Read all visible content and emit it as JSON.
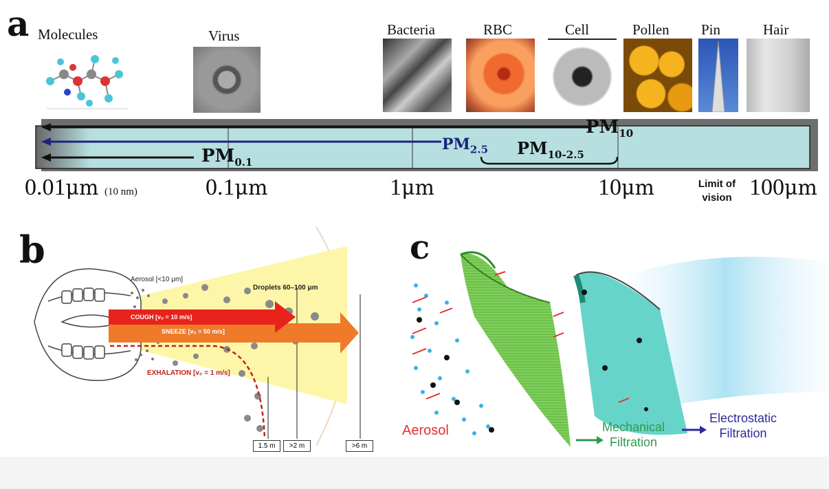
{
  "panel_a": {
    "letter": "a",
    "items": [
      {
        "label": "Molecules"
      },
      {
        "label": "Virus"
      },
      {
        "label": "Bacteria"
      },
      {
        "label": "RBC"
      },
      {
        "label": "Cell"
      },
      {
        "label": "Pollen"
      },
      {
        "label": "Pin"
      },
      {
        "label": "Hair"
      }
    ],
    "scale_ticks": {
      "t1_num": "0.01",
      "t1_unit": "μm",
      "t1_note": "(10 nm)",
      "t2_num": "0.1",
      "t2_unit": "μm",
      "t3_num": "1",
      "t3_unit": "μm",
      "t4_num": "10",
      "t4_unit": "μm",
      "t5_num": "100",
      "t5_unit": "μm"
    },
    "limit_of_vision_line1": "Limit of",
    "limit_of_vision_line2": "vision",
    "pm10_main": "PM",
    "pm10_sub": "10",
    "pm25_main": "PM",
    "pm25_sub": "2.5",
    "pm01_main": "PM",
    "pm01_sub": "0.1",
    "pm1025_main": "PM",
    "pm1025_sub": "10-2.5",
    "colors": {
      "bar": "#b7dfe0",
      "pm25": "#1a237e",
      "frame": "#6e6e6e"
    }
  },
  "panel_b": {
    "letter": "b",
    "aerosol_label": "Aerosol [<10 μm]",
    "droplets_label": "Droplets  60–100 μm",
    "cough_label": "COUGH [v₀ = 10 m/s]",
    "sneeze_label": "SNEEZE  [v₀ = 50 m/s]",
    "exhalation_label": "EXHALATION [v₀ = 1 m/s]",
    "distances": [
      "1.5 m",
      ">2 m",
      ">6 m"
    ],
    "colors": {
      "cough": "#e8231c",
      "sneeze": "#ee7a2a",
      "cone": "#fdf6a8",
      "exhalation": "#c0201c"
    }
  },
  "panel_c": {
    "letter": "c",
    "aerosol_label": "Aerosol",
    "mech_line1": "Mechanical",
    "mech_line2": "Filtration",
    "electro_line1": "Electrostatic",
    "electro_line2": "Filtration",
    "colors": {
      "aerosol": "#e53030",
      "mechanical": "#2e9a4e",
      "electrostatic": "#2e2a9a",
      "filter1": "#7fd05a",
      "filter2": "#5fd2c6"
    }
  }
}
